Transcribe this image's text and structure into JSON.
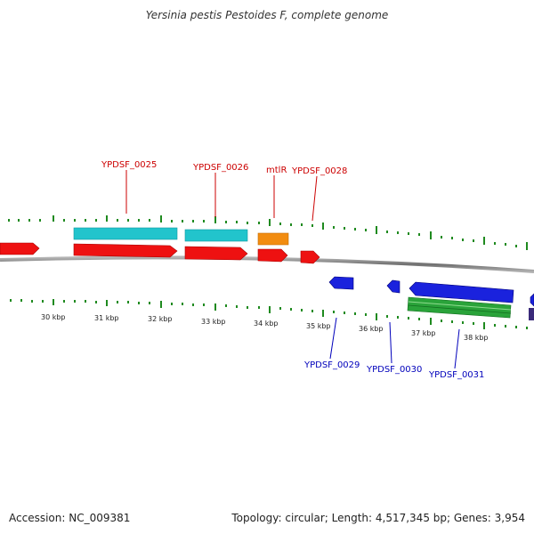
{
  "title": "Yersinia pestis Pestoides F, complete genome",
  "footer": {
    "accession": "Accession: NC_009381",
    "summary": "Topology: circular; Length: 4,517,345 bp; Genes: 3,954"
  },
  "colors": {
    "forward_gene": "#ee1111",
    "cds_feature": "#22c4cc",
    "rrna_feature": "#f28c10",
    "reverse_gene": "#1a22dd",
    "reverse_feature": "#2aa33a",
    "backbone": "#888888",
    "tick": "#1f8a1f",
    "label_forward": "#cc0000",
    "label_reverse": "#0000bb"
  },
  "scale_labels": [
    "30 kbp",
    "31 kbp",
    "32 kbp",
    "33 kbp",
    "34 kbp",
    "35 kbp",
    "36 kbp",
    "37 kbp",
    "38 kbp"
  ],
  "forward_labels": [
    "YPDSF_0025",
    "YPDSF_0026",
    "mtlR",
    "YPDSF_0028"
  ],
  "reverse_labels": [
    "YPDSF_0029",
    "YPDSF_0030",
    "YPDSF_0031"
  ]
}
